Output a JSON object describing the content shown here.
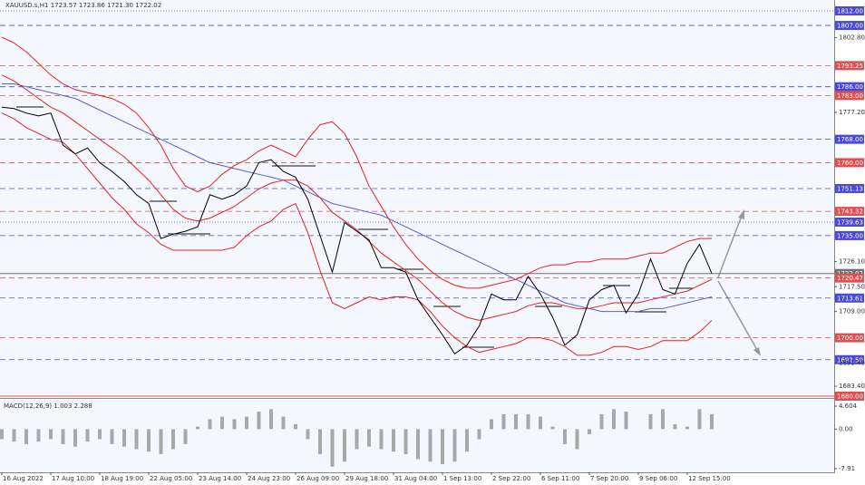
{
  "chart_data": [
    {
      "type": "line",
      "title": "XAUUSD.s,H1  1723.57 1723.86 1721.30 1722.02",
      "categories": [
        "16 Aug 2022",
        null,
        null,
        null,
        "17 Aug 10:00",
        null,
        null,
        null,
        "18 Aug 19:00",
        null,
        null,
        null,
        "22 Aug 05:00",
        null,
        null,
        null,
        "23 Aug 14:00",
        null,
        null,
        null,
        "24 Aug 23:00",
        null,
        null,
        null,
        "26 Aug 09:00",
        null,
        null,
        null,
        "29 Aug 18:00",
        null,
        null,
        null,
        "31 Aug 04:00",
        null,
        null,
        null,
        "1 Sep 13:00",
        null,
        null,
        null,
        "2 Sep 22:00",
        null,
        null,
        null,
        "6 Sep 11:00",
        null,
        null,
        null,
        "7 Sep 20:00",
        null,
        null,
        null,
        "9 Sep 06:00",
        null,
        null,
        null,
        "12 Sep 15:00",
        null,
        null,
        null
      ],
      "series": [
        {
          "color": "#5b5bd6",
          "values": [
            1787,
            1787,
            1786,
            1785,
            1784,
            1783,
            1782,
            1780,
            1778,
            1776,
            1774,
            1772,
            1770,
            1768,
            1766,
            1764,
            1762,
            1760,
            1759,
            1758,
            1757,
            1756,
            1755,
            1754,
            1752,
            1750,
            1748,
            1746,
            1745,
            1744,
            1743,
            1742,
            1740,
            1738,
            1736,
            1734,
            1732,
            1730,
            1728,
            1726,
            1724,
            1722,
            1720,
            1718,
            1716,
            1714,
            1712,
            1711,
            1710,
            1709,
            1709,
            1709,
            1709,
            1710,
            1710,
            1711,
            1712,
            1713,
            1714,
            null
          ]
        },
        {
          "color": "#e8201a",
          "values": [
            1803,
            1801,
            1798,
            1794,
            1790,
            1787,
            1785,
            1784,
            1783,
            1782,
            1780,
            1777,
            1772,
            1766,
            1758,
            1752,
            1750,
            1752,
            1756,
            1759,
            1761,
            1764,
            1766,
            1764,
            1762,
            1768,
            1773,
            1774,
            1770,
            1762,
            1752,
            1745,
            1738,
            1732,
            1727,
            1723,
            1720,
            1718,
            1717,
            1717,
            1718,
            1719,
            1720,
            1722,
            1724,
            1725,
            1725,
            1726,
            1726,
            1727,
            1727,
            1727,
            1728,
            1729,
            1729,
            1731,
            1733,
            1734,
            1734,
            null
          ]
        },
        {
          "color": "#e8201a",
          "values": [
            1790,
            1788,
            1785,
            1782,
            1779,
            1777,
            1774,
            1771,
            1768,
            1765,
            1762,
            1758,
            1754,
            1749,
            1744,
            1741,
            1740,
            1741,
            1743,
            1745,
            1748,
            1751,
            1753,
            1754,
            1754,
            1752,
            1748,
            1743,
            1740,
            1737,
            1733,
            1729,
            1726,
            1723,
            1720,
            1716,
            1712,
            1709,
            1707,
            1706,
            1707,
            1708,
            1709,
            1711,
            1712,
            1712,
            1711,
            1710,
            1710,
            1711,
            1712,
            1712,
            1712,
            1713,
            1714,
            1715,
            1716,
            1718,
            1720,
            null
          ]
        },
        {
          "color": "#e8201a",
          "values": [
            1777,
            1775,
            1772,
            1770,
            1768,
            1767,
            1763,
            1758,
            1753,
            1748,
            1744,
            1739,
            1736,
            1732,
            1730,
            1730,
            1730,
            1730,
            1730,
            1731,
            1735,
            1738,
            1740,
            1744,
            1746,
            1736,
            1723,
            1712,
            1710,
            1712,
            1714,
            1713,
            1714,
            1714,
            1713,
            1709,
            1704,
            1700,
            1697,
            1695,
            1696,
            1697,
            1698,
            1700,
            1700,
            1699,
            1697,
            1694,
            1694,
            1695,
            1697,
            1697,
            1696,
            1697,
            1699,
            1699,
            1699,
            1702,
            1706,
            null
          ]
        },
        {
          "color": "#000000",
          "values": [
            1779,
            1778.5,
            1777,
            1776,
            1777,
            1766,
            1763,
            1765,
            1760,
            1757,
            1753.5,
            1749,
            1746,
            1734,
            1735.5,
            1736.5,
            1738,
            1749,
            1747.5,
            1749,
            1752,
            1760,
            1761,
            1757,
            1755,
            1747.5,
            1735,
            1722.5,
            1739.5,
            1736.5,
            1733.5,
            1724,
            1724,
            1722.5,
            1713,
            1707,
            1701,
            1694.5,
            1697.5,
            1704,
            1715,
            1713,
            1713,
            1721,
            1715,
            1707,
            1697.5,
            1701,
            1713,
            1716.5,
            1718,
            1708.5,
            1715,
            1727,
            1716.5,
            1715,
            1725.5,
            1732,
            1722.02,
            null
          ]
        }
      ],
      "ylim": [
        1680,
        1815.1
      ],
      "yticks": [
        {
          "value": 1802.8,
          "label": "1802.80"
        },
        {
          "value": 1777.2,
          "label": "1777.20"
        },
        {
          "value": 1726.1,
          "label": "1726.10"
        },
        {
          "value": 1717.5,
          "label": "1717.50"
        },
        {
          "value": 1709,
          "label": "1709.00"
        },
        {
          "value": 1691.4,
          "label": "1691.40"
        },
        {
          "value": 1683.4,
          "label": "1683.40"
        }
      ],
      "levels": [
        {
          "value": 1812,
          "label": "1812.00",
          "color": "#4a4ad8",
          "style": "dotted"
        },
        {
          "value": 1807,
          "label": "1807.00",
          "color": "#4a4ad8",
          "style": "dashed"
        },
        {
          "value": 1793.25,
          "label": "1793.25",
          "color": "#e05050",
          "style": "dashed"
        },
        {
          "value": 1786,
          "label": "1786.00",
          "color": "#4a4ad8",
          "style": "dashed"
        },
        {
          "value": 1783,
          "label": "1783.00",
          "color": "#e05050",
          "style": "dashed"
        },
        {
          "value": 1768,
          "label": "1768.00",
          "color": "#4a4ad8",
          "style": "dashed"
        },
        {
          "value": 1760,
          "label": "1760.00",
          "color": "#e05050",
          "style": "dashed"
        },
        {
          "value": 1751.13,
          "label": "1751.13",
          "color": "#4a4ad8",
          "style": "dashed"
        },
        {
          "value": 1743.32,
          "label": "1743.32",
          "color": "#e05050",
          "style": "dashed"
        },
        {
          "value": 1739.63,
          "label": "1739.63",
          "color": "#4a4ad8",
          "style": "dotted"
        },
        {
          "value": 1735,
          "label": "1735.00",
          "color": "#4a4ad8",
          "style": "dashed"
        },
        {
          "value": 1722.02,
          "label": "1722.02",
          "color": "#707070",
          "style": "solid"
        },
        {
          "value": 1720.47,
          "label": "1720.47",
          "color": "#e05050",
          "style": "dashed"
        },
        {
          "value": 1713.61,
          "label": "1713.61",
          "color": "#4a4ad8",
          "style": "dashed"
        },
        {
          "value": 1700,
          "label": "1700.00",
          "color": "#e05050",
          "style": "dashed"
        },
        {
          "value": 1692.5,
          "label": "1692.50",
          "color": "#4a4ad8",
          "style": "dashed"
        },
        {
          "value": 1680,
          "label": "1680.00",
          "color": "#e05050",
          "style": "solid"
        }
      ]
    },
    {
      "type": "bar",
      "title": "MACD(12,26,9) 1.003 2.288",
      "color": "#a8a8a8",
      "values": [
        -2.0,
        -2.5,
        -3.0,
        -2.5,
        -2.0,
        -3.0,
        -3.5,
        -2.5,
        -2.0,
        -3.0,
        -3.5,
        -4.0,
        -4.5,
        -5.0,
        -4.0,
        -3.0,
        0.5,
        2.0,
        2.5,
        2.0,
        2.5,
        3.5,
        4.0,
        2.5,
        1.0,
        -2.0,
        -5.0,
        -7.5,
        -6.5,
        -4.0,
        -3.5,
        -4.0,
        -4.5,
        -5.0,
        -6.0,
        -6.5,
        -7.0,
        -6.5,
        -4.5,
        -2.0,
        2.0,
        3.0,
        3.0,
        3.0,
        2.5,
        0.5,
        -3.0,
        -4.0,
        -1.0,
        3.0,
        4.0,
        3.5,
        0.0,
        3.0,
        4.0,
        1.0,
        0.5,
        4.0,
        3.0,
        null
      ],
      "ylim": [
        -8.45,
        5.51
      ],
      "yticks": [
        4.604,
        {
          "value": 0,
          "label": "0.00"
        },
        -7.91
      ]
    }
  ]
}
